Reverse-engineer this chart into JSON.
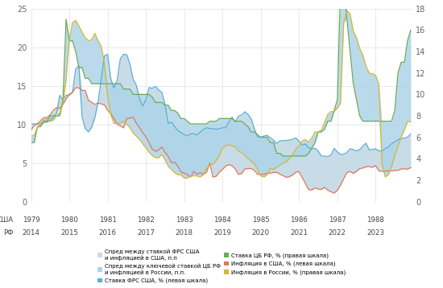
{
  "colors": {
    "us_spread_fill": "#c8dce8",
    "rf_spread_fill": "#aed4e8",
    "fed_rate_line": "#5aafd4",
    "us_inflation_line": "#e07858",
    "cb_rf_rate_line": "#6aaa5a",
    "rf_inflation_line": "#d4b830"
  },
  "left_ylim": [
    0,
    25
  ],
  "right_ylim": [
    0,
    18
  ],
  "left_yticks": [
    0,
    5,
    10,
    15,
    20,
    25
  ],
  "right_yticks": [
    0,
    2,
    4,
    6,
    8,
    10,
    12,
    14,
    16,
    18
  ],
  "xtick_positions": [
    1979,
    1980,
    1981,
    1982,
    1983,
    1984,
    1985,
    1986,
    1987,
    1988
  ],
  "usa_labels": [
    "1979",
    "1980",
    "1981",
    "1982",
    "1983",
    "1984",
    "1985",
    "1986",
    "1987",
    "1988"
  ],
  "rf_labels": [
    "2014",
    "2015",
    "2016",
    "2017",
    "2018",
    "2019",
    "2020",
    "2021",
    "2022",
    "2023"
  ],
  "legend": [
    {
      "label": "Спред между ставкой ФРС США\nи инфляцией в США, п.п",
      "color": "#c8dce8",
      "type": "patch"
    },
    {
      "label": "Спред между ключевой ставкой ЦБ РФ\nи инфляцией в России, п.п.",
      "color": "#aed4e8",
      "type": "patch"
    },
    {
      "label": "Ставка ФРС США, % (левая шкала)",
      "color": "#5aafd4",
      "type": "patch"
    },
    {
      "label": "Ставка ЦБ РФ, % (правая шкала)",
      "color": "#6aaa5a",
      "type": "patch"
    },
    {
      "label": "Инфляция в США, % (левая шкала)",
      "color": "#e07858",
      "type": "patch"
    },
    {
      "label": "Инфляция в России, % (правая шкала)",
      "color": "#d4b830",
      "type": "patch"
    }
  ]
}
